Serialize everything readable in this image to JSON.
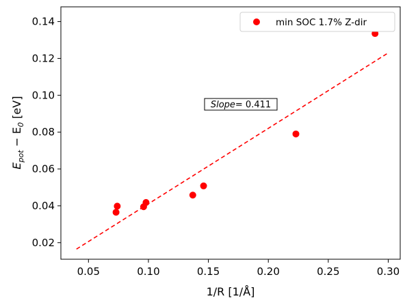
{
  "chart_data": {
    "type": "scatter",
    "xlabel": "1/R [1/Å]",
    "ylabel_main": "E",
    "ylabel_sub1": "pot",
    "ylabel_mid": " − E",
    "ylabel_sub2": "0",
    "ylabel_unit": " [eV]",
    "xlim": [
      0.027,
      0.31
    ],
    "ylim": [
      0.011,
      0.148
    ],
    "xticks": [
      0.05,
      0.1,
      0.15,
      0.2,
      0.25,
      0.3
    ],
    "xtick_labels": [
      "0.05",
      "0.10",
      "0.15",
      "0.20",
      "0.25",
      "0.30"
    ],
    "yticks": [
      0.02,
      0.04,
      0.06,
      0.08,
      0.1,
      0.12,
      0.14
    ],
    "ytick_labels": [
      "0.02",
      "0.04",
      "0.06",
      "0.08",
      "0.10",
      "0.12",
      "0.14"
    ],
    "grid": false,
    "legend_position": "top-right",
    "series": [
      {
        "name": "min SOC 1.7% Z-dir",
        "color": "#ff0000",
        "marker": "circle",
        "points": [
          {
            "x": 0.073,
            "y": 0.0365
          },
          {
            "x": 0.074,
            "y": 0.0398
          },
          {
            "x": 0.096,
            "y": 0.0395
          },
          {
            "x": 0.098,
            "y": 0.0418
          },
          {
            "x": 0.137,
            "y": 0.0458
          },
          {
            "x": 0.146,
            "y": 0.0508
          },
          {
            "x": 0.223,
            "y": 0.079
          },
          {
            "x": 0.289,
            "y": 0.1335
          }
        ]
      }
    ],
    "fit_line": {
      "color": "#ff0000",
      "style": "dashed",
      "x": [
        0.04,
        0.3
      ],
      "y": [
        0.0165,
        0.123
      ]
    },
    "annotation": {
      "label": "Slope",
      "value": "= 0.411",
      "x": 0.181,
      "y": 0.093,
      "boxed": true
    }
  }
}
